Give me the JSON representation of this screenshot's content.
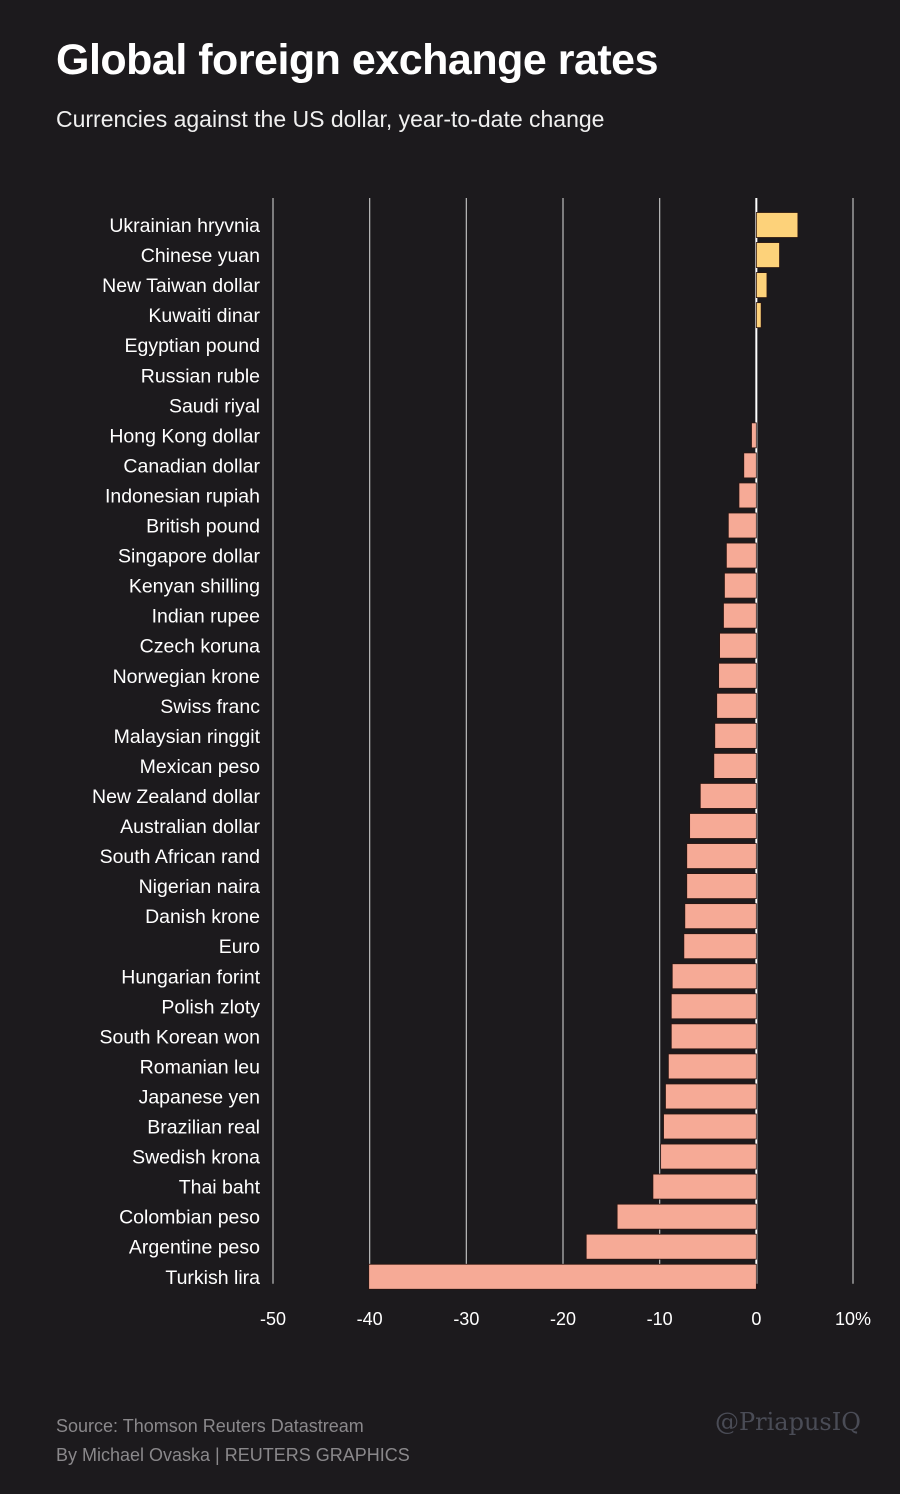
{
  "chart_data": {
    "type": "bar",
    "orientation": "horizontal",
    "title": "Global foreign exchange rates",
    "subtitle": "Currencies against the US dollar, year-to-date change",
    "categories": [
      "Ukrainian hryvnia",
      "Chinese yuan",
      "New Taiwan dollar",
      "Kuwaiti dinar",
      "Egyptian pound",
      "Russian ruble",
      "Saudi riyal",
      "Hong Kong dollar",
      "Canadian dollar",
      "Indonesian rupiah",
      "British pound",
      "Singapore dollar",
      "Kenyan shilling",
      "Indian rupee",
      "Czech koruna",
      "Norwegian krone",
      "Swiss franc",
      "Malaysian ringgit",
      "Mexican peso",
      "New Zealand dollar",
      "Australian dollar",
      "South African rand",
      "Nigerian naira",
      "Danish krone",
      "Euro",
      "Hungarian forint",
      "Polish zloty",
      "South Korean won",
      "Romanian leu",
      "Japanese yen",
      "Brazilian real",
      "Swedish krona",
      "Thai baht",
      "Colombian peso",
      "Argentine peso",
      "Turkish lira"
    ],
    "values": [
      4.3,
      2.4,
      1.1,
      0.5,
      0,
      0,
      0,
      -0.5,
      -1.3,
      -1.8,
      -2.9,
      -3.1,
      -3.3,
      -3.4,
      -3.8,
      -3.9,
      -4.1,
      -4.3,
      -4.4,
      -5.8,
      -6.9,
      -7.2,
      -7.2,
      -7.4,
      -7.5,
      -8.7,
      -8.8,
      -8.8,
      -9.1,
      -9.4,
      -9.6,
      -9.9,
      -10.7,
      -14.4,
      -17.6,
      -40.1
    ],
    "xlim": [
      -50,
      10
    ],
    "x_ticks": [
      -50,
      -40,
      -30,
      -20,
      -10,
      0,
      10
    ],
    "x_tick_labels": [
      "-50",
      "-40",
      "-30",
      "-20",
      "-10",
      "0",
      "10%"
    ],
    "grid": true,
    "colors": {
      "positive": "#fdd27a",
      "negative": "#f6aa96",
      "background": "#1c1a1d",
      "gridline": "#bdbdbd"
    }
  },
  "footer": {
    "source": "Source: Thomson Reuters Datastream",
    "byline": "By Michael Ovaska | REUTERS GRAPHICS",
    "watermark": "@PriapusIQ"
  }
}
